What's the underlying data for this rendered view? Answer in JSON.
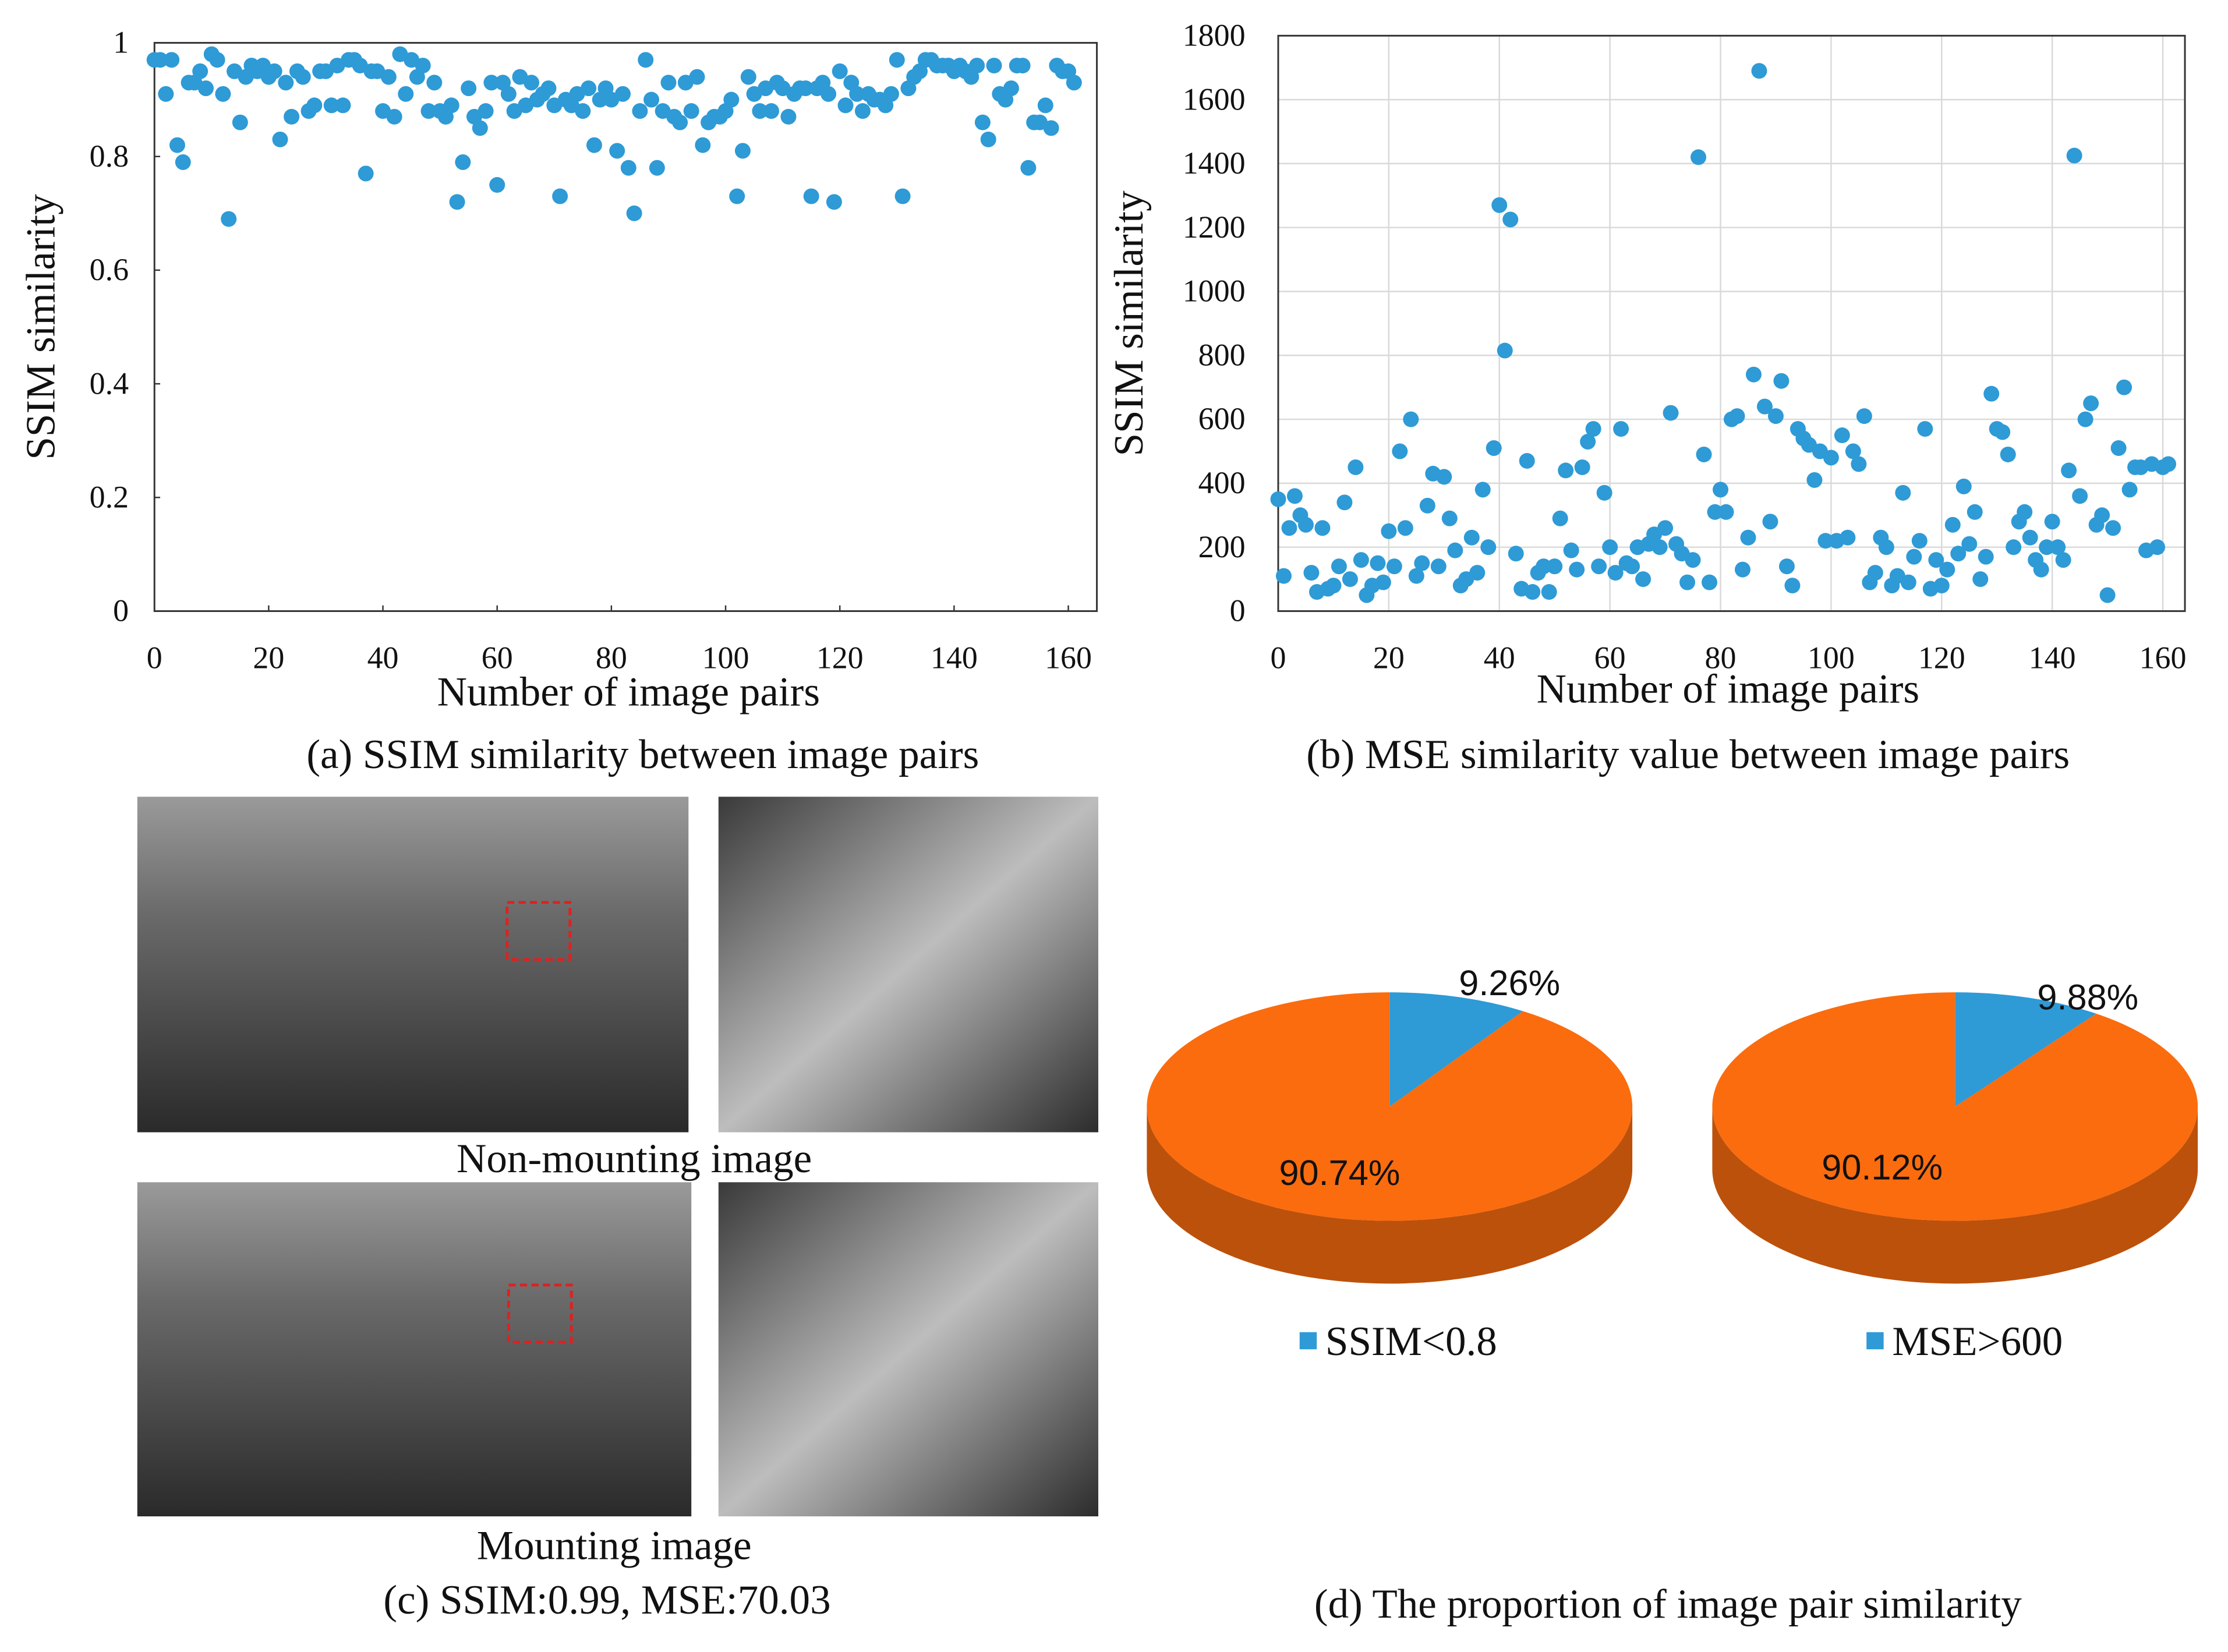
{
  "chart_data": [
    {
      "type": "scatter",
      "caption": "(a) SSIM similarity between image pairs",
      "xlabel": "Number of image pairs",
      "ylabel": "SSIM similarity",
      "color": "#2e9ad6",
      "grid": false,
      "xlim": [
        0,
        165
      ],
      "xticks": [
        0,
        20,
        40,
        60,
        80,
        100,
        120,
        140,
        160
      ],
      "ylim": [
        0,
        1
      ],
      "yticks": [
        0,
        0.2,
        0.4,
        0.6,
        0.8,
        1
      ],
      "x": [
        0,
        1,
        2,
        3,
        4,
        5,
        6,
        7,
        8,
        9,
        10,
        11,
        12,
        13,
        14,
        15,
        16,
        17,
        18,
        19,
        20,
        21,
        22,
        23,
        24,
        25,
        26,
        27,
        28,
        29,
        30,
        31,
        32,
        33,
        34,
        35,
        36,
        37,
        38,
        39,
        40,
        41,
        42,
        43,
        44,
        45,
        46,
        47,
        48,
        49,
        50,
        51,
        52,
        53,
        54,
        55,
        56,
        57,
        58,
        59,
        60,
        61,
        62,
        63,
        64,
        65,
        66,
        67,
        68,
        69,
        70,
        71,
        72,
        73,
        74,
        75,
        76,
        77,
        78,
        79,
        80,
        81,
        82,
        83,
        84,
        85,
        86,
        87,
        88,
        89,
        90,
        91,
        92,
        93,
        94,
        95,
        96,
        97,
        98,
        99,
        100,
        101,
        102,
        103,
        104,
        105,
        106,
        107,
        108,
        109,
        110,
        111,
        112,
        113,
        114,
        115,
        116,
        117,
        118,
        119,
        120,
        121,
        122,
        123,
        124,
        125,
        126,
        127,
        128,
        129,
        130,
        131,
        132,
        133,
        134,
        135,
        136,
        137,
        138,
        139,
        140,
        141,
        142,
        143,
        144,
        145,
        146,
        147,
        148,
        149,
        150,
        151,
        152,
        153,
        154,
        155,
        156,
        157,
        158,
        159,
        160,
        161
      ],
      "values": [
        0.97,
        0.97,
        0.91,
        0.97,
        0.82,
        0.79,
        0.93,
        0.93,
        0.95,
        0.92,
        0.98,
        0.97,
        0.91,
        0.69,
        0.95,
        0.86,
        0.94,
        0.96,
        0.95,
        0.96,
        0.94,
        0.95,
        0.83,
        0.93,
        0.87,
        0.95,
        0.94,
        0.88,
        0.89,
        0.95,
        0.95,
        0.89,
        0.96,
        0.89,
        0.97,
        0.97,
        0.96,
        0.77,
        0.95,
        0.95,
        0.88,
        0.94,
        0.87,
        0.98,
        0.91,
        0.97,
        0.94,
        0.96,
        0.88,
        0.93,
        0.88,
        0.87,
        0.89,
        0.72,
        0.79,
        0.92,
        0.87,
        0.85,
        0.88,
        0.93,
        0.75,
        0.93,
        0.91,
        0.88,
        0.94,
        0.89,
        0.93,
        0.9,
        0.91,
        0.92,
        0.89,
        0.73,
        0.9,
        0.89,
        0.91,
        0.88,
        0.92,
        0.82,
        0.9,
        0.92,
        0.9,
        0.81,
        0.91,
        0.78,
        0.7,
        0.88,
        0.97,
        0.9,
        0.78,
        0.88,
        0.93,
        0.87,
        0.86,
        0.93,
        0.88,
        0.94,
        0.82,
        0.86,
        0.87,
        0.87,
        0.88,
        0.9,
        0.73,
        0.81,
        0.94,
        0.91,
        0.88,
        0.92,
        0.88,
        0.93,
        0.92,
        0.87,
        0.91,
        0.92,
        0.92,
        0.73,
        0.92,
        0.93,
        0.91,
        0.72,
        0.95,
        0.89,
        0.93,
        0.91,
        0.88,
        0.91,
        0.9,
        0.9,
        0.89,
        0.91,
        0.97,
        0.73,
        0.92,
        0.94,
        0.95,
        0.97,
        0.97,
        0.96,
        0.96,
        0.96,
        0.95,
        0.96,
        0.95,
        0.94,
        0.96,
        0.86,
        0.83,
        0.96,
        0.91,
        0.9,
        0.92,
        0.96,
        0.96,
        0.78,
        0.86,
        0.86,
        0.89,
        0.85,
        0.96,
        0.95,
        0.95,
        0.93
      ]
    },
    {
      "type": "scatter",
      "caption": "(b) MSE similarity value between image pairs",
      "xlabel": "Number of image pairs",
      "ylabel": "SSIM similarity",
      "color": "#2e9ad6",
      "grid": true,
      "xlim": [
        0,
        164
      ],
      "xticks": [
        0,
        20,
        40,
        60,
        80,
        100,
        120,
        140,
        160
      ],
      "ylim": [
        0,
        1800
      ],
      "yticks": [
        0,
        200,
        400,
        600,
        800,
        1000,
        1200,
        1400,
        1600,
        1800
      ],
      "x": [
        0,
        1,
        2,
        3,
        4,
        5,
        6,
        7,
        8,
        9,
        10,
        11,
        12,
        13,
        14,
        15,
        16,
        17,
        18,
        19,
        20,
        21,
        22,
        23,
        24,
        25,
        26,
        27,
        28,
        29,
        30,
        31,
        32,
        33,
        34,
        35,
        36,
        37,
        38,
        39,
        40,
        41,
        42,
        43,
        44,
        45,
        46,
        47,
        48,
        49,
        50,
        51,
        52,
        53,
        54,
        55,
        56,
        57,
        58,
        59,
        60,
        61,
        62,
        63,
        64,
        65,
        66,
        67,
        68,
        69,
        70,
        71,
        72,
        73,
        74,
        75,
        76,
        77,
        78,
        79,
        80,
        81,
        82,
        83,
        84,
        85,
        86,
        87,
        88,
        89,
        90,
        91,
        92,
        93,
        94,
        95,
        96,
        97,
        98,
        99,
        100,
        101,
        102,
        103,
        104,
        105,
        106,
        107,
        108,
        109,
        110,
        111,
        112,
        113,
        114,
        115,
        116,
        117,
        118,
        119,
        120,
        121,
        122,
        123,
        124,
        125,
        126,
        127,
        128,
        129,
        130,
        131,
        132,
        133,
        134,
        135,
        136,
        137,
        138,
        139,
        140,
        141,
        142,
        143,
        144,
        145,
        146,
        147,
        148,
        149,
        150,
        151,
        152,
        153,
        154,
        155,
        156,
        157,
        158,
        159,
        160,
        161
      ],
      "values": [
        350,
        110,
        260,
        360,
        300,
        270,
        120,
        60,
        260,
        70,
        80,
        140,
        340,
        100,
        450,
        160,
        50,
        80,
        150,
        90,
        250,
        140,
        500,
        260,
        600,
        110,
        150,
        330,
        430,
        140,
        420,
        290,
        190,
        80,
        100,
        230,
        120,
        380,
        200,
        510,
        1270,
        815,
        1225,
        180,
        70,
        470,
        60,
        120,
        140,
        60,
        140,
        290,
        440,
        190,
        130,
        450,
        530,
        570,
        140,
        370,
        200,
        120,
        570,
        150,
        140,
        200,
        100,
        210,
        240,
        200,
        260,
        620,
        210,
        180,
        90,
        160,
        1420,
        490,
        90,
        310,
        380,
        310,
        600,
        610,
        130,
        230,
        740,
        1690,
        640,
        280,
        610,
        720,
        140,
        80,
        570,
        540,
        520,
        410,
        500,
        220,
        480,
        220,
        550,
        230,
        500,
        460,
        610,
        90,
        120,
        230,
        200,
        80,
        110,
        370,
        90,
        170,
        220,
        570,
        70,
        160,
        80,
        130,
        270,
        180,
        390,
        210,
        310,
        100,
        170,
        680,
        570,
        560,
        490,
        200,
        280,
        310,
        230,
        160,
        130,
        200,
        280,
        200,
        160,
        440,
        1425,
        360,
        600,
        650,
        270,
        300,
        50,
        260,
        510,
        700,
        380,
        450,
        450,
        190,
        460,
        200,
        450,
        460
      ]
    },
    {
      "type": "pie",
      "labels": [
        "SSIM<0.8",
        null
      ],
      "values": [
        9.26,
        90.74
      ],
      "value_labels": [
        "9.26%",
        "90.74%"
      ],
      "colors": [
        "#2e9ad6",
        "#fb6c0e"
      ]
    },
    {
      "type": "pie",
      "labels": [
        "MSE>600",
        null
      ],
      "values": [
        9.88,
        90.12
      ],
      "value_labels": [
        "9.88%",
        "90.12%"
      ],
      "colors": [
        "#2e9ad6",
        "#fb6c0e"
      ]
    }
  ],
  "panel_c": {
    "image_labels": [
      "Non-mounting image",
      "Mounting image"
    ],
    "caption": "(c) SSIM:0.99, MSE:70.03"
  },
  "panel_d": {
    "caption": "(d) The proportion of image pair similarity"
  }
}
